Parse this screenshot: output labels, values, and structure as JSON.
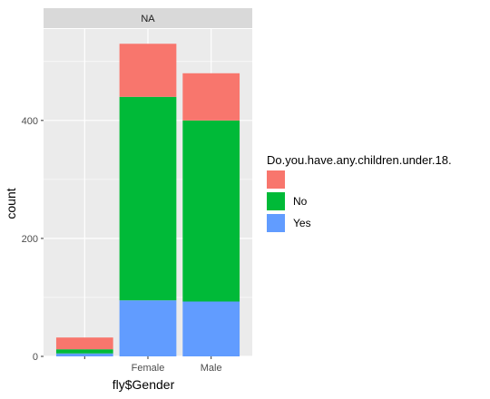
{
  "chart_data": {
    "type": "bar",
    "stacked": true,
    "facet_strip": "NA",
    "xlabel": "fly$Gender",
    "ylabel": "count",
    "categories": [
      "",
      "Female",
      "Male"
    ],
    "ylim": [
      0,
      555
    ],
    "yticks": [
      0,
      200,
      400
    ],
    "grid": true,
    "legend": {
      "title": "Do.you.have.any.children.under.18.",
      "placement": "right"
    },
    "series": [
      {
        "name": "",
        "color": "#F8766D",
        "values": [
          20,
          90,
          80
        ]
      },
      {
        "name": "No",
        "color": "#00BA38",
        "values": [
          7,
          345,
          307
        ]
      },
      {
        "name": "Yes",
        "color": "#619CFF",
        "values": [
          5,
          95,
          93
        ]
      }
    ]
  }
}
